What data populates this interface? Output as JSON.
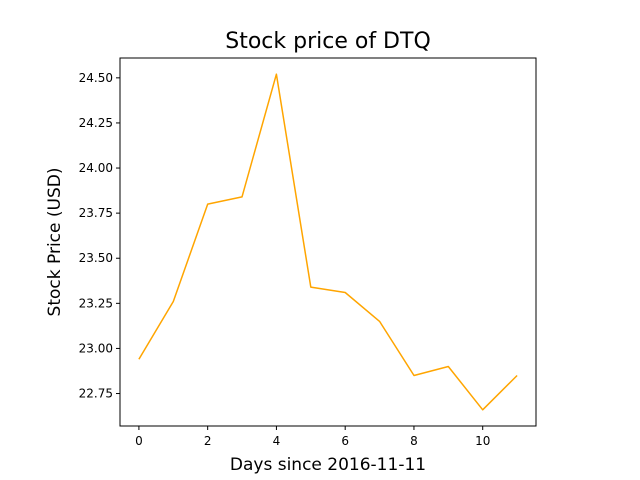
{
  "chart_data": {
    "type": "line",
    "title": "Stock price of DTQ",
    "xlabel": "Days since 2016-11-11",
    "ylabel": "Stock Price (USD)",
    "x": [
      0,
      1,
      2,
      3,
      4,
      5,
      6,
      7,
      8,
      9,
      10,
      11
    ],
    "series": [
      {
        "values": [
          22.94,
          23.26,
          23.8,
          23.84,
          24.52,
          23.34,
          23.31,
          23.15,
          22.85,
          22.9,
          22.66,
          22.85
        ],
        "color": "#ffa500"
      }
    ],
    "xlim": [
      -0.55,
      11.55
    ],
    "ylim": [
      22.57,
      24.61
    ],
    "xticks": [
      0,
      2,
      4,
      6,
      8,
      10
    ],
    "xtick_labels": [
      "0",
      "2",
      "4",
      "6",
      "8",
      "10"
    ],
    "yticks": [
      22.75,
      23.0,
      23.25,
      23.5,
      23.75,
      24.0,
      24.25,
      24.5
    ],
    "ytick_labels": [
      "22.75",
      "23.00",
      "23.25",
      "23.50",
      "23.75",
      "24.00",
      "24.25",
      "24.50"
    ],
    "grid": false,
    "legend": "none"
  }
}
